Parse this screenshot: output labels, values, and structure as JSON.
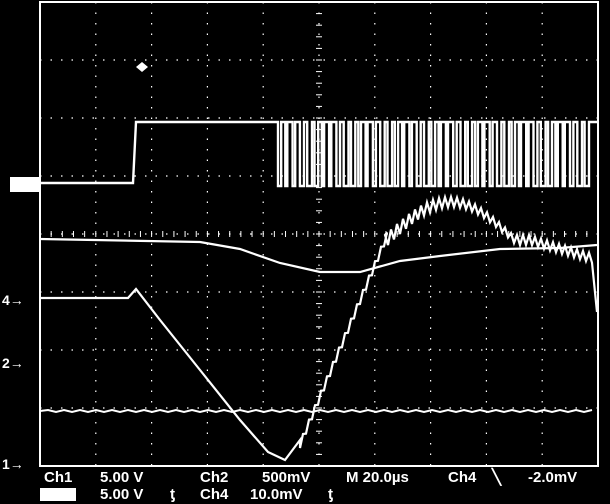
{
  "scope": {
    "markers": {
      "ch4_level": "4",
      "ch2_level": "2",
      "ch1_level": "1"
    },
    "readout": {
      "row1": {
        "ch1": "Ch1",
        "ch1_scale": "5.00 V",
        "ch2": "Ch2",
        "ch2_scale": "500mV",
        "timebase": "M 20.0µs",
        "trigger_src": "Ch4",
        "trigger_slope": "╲",
        "trigger_level": "-2.0mV"
      },
      "row2": {
        "ch3_scale": "5.00 V",
        "ch3_bw": "ƫ",
        "ch4": "Ch4",
        "ch4_scale": "10.0mV",
        "ch4_bw": "ƫ"
      }
    },
    "colors": {
      "background": "#000000",
      "trace": "#ffffff",
      "graticule": "#ffffff"
    }
  }
}
